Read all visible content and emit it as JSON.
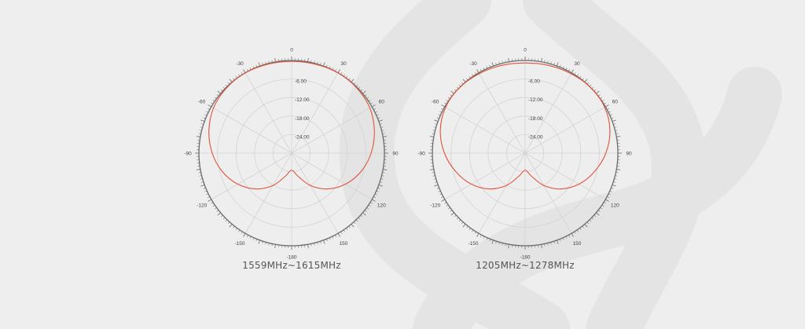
{
  "colors": {
    "background": "#eeeeee",
    "watermark": "#e4e4e4",
    "grid": "#d3d3d3",
    "outer_ring": "#6a6a6a",
    "tick": "#777777",
    "text": "#444444",
    "pattern": "#e0533b"
  },
  "chart_data": [
    {
      "type": "polar-line",
      "title": "1559MHz~1615MHz",
      "angle_labels": [
        "0",
        "30",
        "60",
        "90",
        "120",
        "150",
        "-180",
        "-150",
        "-120",
        "-90",
        "-60",
        "-30"
      ],
      "radial_labels": [
        "-6.00",
        "-12.00",
        "-18.00",
        "-24.00"
      ],
      "radial_range_db": [
        -30,
        0
      ],
      "series": [
        {
          "angle_deg": [
            0,
            15,
            30,
            45,
            60,
            75,
            90,
            105,
            120,
            135,
            150,
            165,
            180,
            -165,
            -150,
            -135,
            -120,
            -105,
            -90,
            -75,
            -60,
            -45,
            -30,
            -15
          ],
          "gain_db": [
            -0.3,
            -0.2,
            0,
            -0.2,
            -0.8,
            -2.3,
            -4.3,
            -6.8,
            -9.9,
            -13.6,
            -17.9,
            -22.3,
            -24.5,
            -22.3,
            -17.9,
            -13.6,
            -9.9,
            -6.8,
            -4.3,
            -2.3,
            -0.8,
            -0.2,
            0,
            -0.2
          ]
        }
      ]
    },
    {
      "type": "polar-line",
      "title": "1205MHz~1278MHz",
      "angle_labels": [
        "0",
        "30",
        "60",
        "90",
        "120",
        "150",
        "-180",
        "-150",
        "-120",
        "-90",
        "-60",
        "-30"
      ],
      "radial_labels": [
        "-6.00",
        "-12.00",
        "-18.00",
        "-24.00"
      ],
      "radial_range_db": [
        -30,
        0
      ],
      "series": [
        {
          "angle_deg": [
            0,
            15,
            30,
            45,
            60,
            75,
            90,
            105,
            120,
            135,
            150,
            165,
            180,
            -165,
            -150,
            -135,
            -120,
            -105,
            -90,
            -75,
            -60,
            -45,
            -30,
            -15
          ],
          "gain_db": [
            -0.8,
            -0.6,
            -0.3,
            0,
            -0.3,
            -1.6,
            -3.9,
            -6.8,
            -9.9,
            -13.6,
            -17.9,
            -22.3,
            -24.5,
            -22.3,
            -17.9,
            -13.6,
            -9.9,
            -6.8,
            -3.9,
            -1.6,
            -0.3,
            0,
            -0.3,
            -0.6
          ]
        }
      ]
    }
  ]
}
